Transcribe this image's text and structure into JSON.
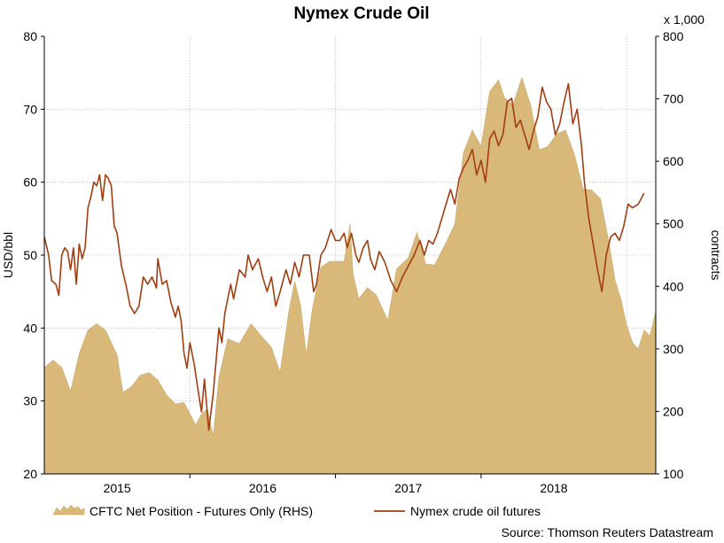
{
  "chart_data": {
    "type": "line",
    "title": "Nymex Crude Oil",
    "ylabel": "USD/bbl",
    "y2label": "contracts",
    "y2_multiplier_label": "x 1,000",
    "ylim": [
      20,
      80
    ],
    "y2lim": [
      100,
      800
    ],
    "yticks": [
      "20",
      "30",
      "40",
      "50",
      "60",
      "70",
      "80"
    ],
    "y2ticks": [
      "100",
      "200",
      "300",
      "400",
      "500",
      "600",
      "700",
      "800"
    ],
    "xlim": [
      2014.5,
      2018.7
    ],
    "xticks": [
      {
        "label": "2015",
        "x": 2015.0
      },
      {
        "label": "2016",
        "x": 2016.0
      },
      {
        "label": "2017",
        "x": 2017.0
      },
      {
        "label": "2018",
        "x": 2018.0
      }
    ],
    "grid": true,
    "legend_position": "bottom",
    "source": "Source: Thomson Reuters Datastream",
    "colors": {
      "area_fill": "#d9b97a",
      "area_stroke": "#c9a35d",
      "line": "#a33d10",
      "grid": "#bbbbbb"
    },
    "series": [
      {
        "name": "CFTC Net Position - Futures Only (RHS)",
        "type": "area",
        "axis": "right",
        "points": [
          [
            2014.5,
            270
          ],
          [
            2014.56,
            282
          ],
          [
            2014.62,
            270
          ],
          [
            2014.68,
            232
          ],
          [
            2014.74,
            292
          ],
          [
            2014.8,
            330
          ],
          [
            2014.86,
            340
          ],
          [
            2014.92,
            330
          ],
          [
            2015.0,
            290
          ],
          [
            2015.04,
            230
          ],
          [
            2015.1,
            240
          ],
          [
            2015.16,
            258
          ],
          [
            2015.22,
            262
          ],
          [
            2015.28,
            250
          ],
          [
            2015.34,
            226
          ],
          [
            2015.4,
            212
          ],
          [
            2015.46,
            214
          ],
          [
            2015.5,
            196
          ],
          [
            2015.54,
            178
          ],
          [
            2015.58,
            196
          ],
          [
            2015.62,
            204
          ],
          [
            2015.66,
            160
          ],
          [
            2015.7,
            255
          ],
          [
            2015.76,
            316
          ],
          [
            2015.84,
            308
          ],
          [
            2015.92,
            340
          ],
          [
            2016.0,
            318
          ],
          [
            2016.06,
            302
          ],
          [
            2016.12,
            262
          ],
          [
            2016.18,
            360
          ],
          [
            2016.22,
            408
          ],
          [
            2016.26,
            370
          ],
          [
            2016.3,
            290
          ],
          [
            2016.34,
            362
          ],
          [
            2016.4,
            430
          ],
          [
            2016.46,
            440
          ],
          [
            2016.52,
            440
          ],
          [
            2016.56,
            440
          ],
          [
            2016.6,
            500
          ],
          [
            2016.62,
            420
          ],
          [
            2016.66,
            380
          ],
          [
            2016.72,
            398
          ],
          [
            2016.78,
            386
          ],
          [
            2016.86,
            345
          ],
          [
            2016.92,
            428
          ],
          [
            2017.0,
            445
          ],
          [
            2017.06,
            486
          ],
          [
            2017.12,
            436
          ],
          [
            2017.18,
            434
          ],
          [
            2017.22,
            452
          ],
          [
            2017.26,
            470
          ],
          [
            2017.32,
            500
          ],
          [
            2017.38,
            614
          ],
          [
            2017.44,
            650
          ],
          [
            2017.5,
            624
          ],
          [
            2017.56,
            712
          ],
          [
            2017.62,
            730
          ],
          [
            2017.66,
            702
          ],
          [
            2017.72,
            690
          ],
          [
            2017.78,
            734
          ],
          [
            2017.84,
            690
          ],
          [
            2017.9,
            618
          ],
          [
            2017.96,
            624
          ],
          [
            2018.02,
            644
          ],
          [
            2018.08,
            650
          ],
          [
            2018.14,
            612
          ],
          [
            2018.2,
            556
          ],
          [
            2018.26,
            554
          ],
          [
            2018.32,
            540
          ],
          [
            2018.38,
            468
          ],
          [
            2018.42,
            410
          ],
          [
            2018.46,
            380
          ],
          [
            2018.5,
            338
          ],
          [
            2018.54,
            310
          ],
          [
            2018.58,
            300
          ],
          [
            2018.62,
            330
          ],
          [
            2018.66,
            320
          ],
          [
            2018.7,
            360
          ]
        ]
      },
      {
        "name": "Nymex crude oil futures",
        "type": "line",
        "axis": "left",
        "points": [
          [
            2014.5,
            52.5
          ],
          [
            2014.53,
            50.0
          ],
          [
            2014.55,
            46.5
          ],
          [
            2014.58,
            46.0
          ],
          [
            2014.6,
            44.5
          ],
          [
            2014.62,
            50.0
          ],
          [
            2014.64,
            51.0
          ],
          [
            2014.66,
            50.5
          ],
          [
            2014.68,
            48.0
          ],
          [
            2014.7,
            51.0
          ],
          [
            2014.72,
            46.0
          ],
          [
            2014.74,
            51.5
          ],
          [
            2014.76,
            49.5
          ],
          [
            2014.78,
            51.0
          ],
          [
            2014.8,
            56.5
          ],
          [
            2014.82,
            58.0
          ],
          [
            2014.84,
            60.0
          ],
          [
            2014.86,
            59.5
          ],
          [
            2014.88,
            61.0
          ],
          [
            2014.9,
            57.5
          ],
          [
            2014.92,
            61.0
          ],
          [
            2014.94,
            60.5
          ],
          [
            2014.96,
            59.5
          ],
          [
            2014.98,
            54.0
          ],
          [
            2015.0,
            53.0
          ],
          [
            2015.03,
            48.5
          ],
          [
            2015.06,
            46.0
          ],
          [
            2015.09,
            43.0
          ],
          [
            2015.12,
            42.0
          ],
          [
            2015.15,
            43.0
          ],
          [
            2015.18,
            47.0
          ],
          [
            2015.21,
            46.0
          ],
          [
            2015.24,
            47.0
          ],
          [
            2015.27,
            45.5
          ],
          [
            2015.28,
            49.5
          ],
          [
            2015.31,
            46.0
          ],
          [
            2015.34,
            46.5
          ],
          [
            2015.37,
            43.5
          ],
          [
            2015.4,
            41.5
          ],
          [
            2015.42,
            43.0
          ],
          [
            2015.44,
            41.0
          ],
          [
            2015.46,
            36.5
          ],
          [
            2015.48,
            34.5
          ],
          [
            2015.5,
            38.0
          ],
          [
            2015.53,
            35.0
          ],
          [
            2015.56,
            31.0
          ],
          [
            2015.58,
            28.5
          ],
          [
            2015.6,
            33.0
          ],
          [
            2015.63,
            26.0
          ],
          [
            2015.66,
            31.0
          ],
          [
            2015.7,
            40.0
          ],
          [
            2015.72,
            38.0
          ],
          [
            2015.74,
            42.0
          ],
          [
            2015.78,
            46.0
          ],
          [
            2015.8,
            44.0
          ],
          [
            2015.84,
            48.0
          ],
          [
            2015.88,
            47.0
          ],
          [
            2015.9,
            50.0
          ],
          [
            2015.93,
            48.0
          ],
          [
            2015.97,
            49.5
          ],
          [
            2016.0,
            47.0
          ],
          [
            2016.03,
            45.0
          ],
          [
            2016.06,
            47.0
          ],
          [
            2016.09,
            43.0
          ],
          [
            2016.12,
            45.0
          ],
          [
            2016.16,
            48.0
          ],
          [
            2016.19,
            46.0
          ],
          [
            2016.22,
            49.0
          ],
          [
            2016.25,
            47.0
          ],
          [
            2016.28,
            50.0
          ],
          [
            2016.32,
            50.0
          ],
          [
            2016.35,
            45.0
          ],
          [
            2016.37,
            46.0
          ],
          [
            2016.4,
            50.0
          ],
          [
            2016.43,
            51.0
          ],
          [
            2016.47,
            53.5
          ],
          [
            2016.5,
            52.0
          ],
          [
            2016.53,
            52.0
          ],
          [
            2016.56,
            53.0
          ],
          [
            2016.58,
            51.0
          ],
          [
            2016.61,
            53.0
          ],
          [
            2016.64,
            50.0
          ],
          [
            2016.66,
            49.0
          ],
          [
            2016.69,
            51.0
          ],
          [
            2016.72,
            52.0
          ],
          [
            2016.74,
            49.5
          ],
          [
            2016.77,
            48.0
          ],
          [
            2016.8,
            50.5
          ],
          [
            2016.84,
            49.0
          ],
          [
            2016.88,
            46.5
          ],
          [
            2016.92,
            45.0
          ],
          [
            2016.96,
            47.0
          ],
          [
            2017.0,
            48.5
          ],
          [
            2017.04,
            50.0
          ],
          [
            2017.08,
            52.0
          ],
          [
            2017.11,
            50.0
          ],
          [
            2017.14,
            52.0
          ],
          [
            2017.17,
            51.5
          ],
          [
            2017.2,
            53.0
          ],
          [
            2017.23,
            55.0
          ],
          [
            2017.26,
            57.0
          ],
          [
            2017.29,
            59.0
          ],
          [
            2017.32,
            57.0
          ],
          [
            2017.35,
            60.5
          ],
          [
            2017.38,
            62.0
          ],
          [
            2017.41,
            63.0
          ],
          [
            2017.44,
            64.5
          ],
          [
            2017.47,
            61.0
          ],
          [
            2017.5,
            63.0
          ],
          [
            2017.53,
            60.0
          ],
          [
            2017.56,
            66.0
          ],
          [
            2017.59,
            67.0
          ],
          [
            2017.62,
            65.0
          ],
          [
            2017.65,
            66.5
          ],
          [
            2017.68,
            71.0
          ],
          [
            2017.71,
            71.5
          ],
          [
            2017.74,
            67.5
          ],
          [
            2017.77,
            68.5
          ],
          [
            2017.8,
            66.5
          ],
          [
            2017.83,
            64.5
          ],
          [
            2017.86,
            67.0
          ],
          [
            2017.89,
            69.0
          ],
          [
            2017.92,
            73.0
          ],
          [
            2017.95,
            71.0
          ],
          [
            2017.98,
            70.0
          ],
          [
            2018.01,
            66.5
          ],
          [
            2018.04,
            68.0
          ],
          [
            2018.07,
            71.0
          ],
          [
            2018.1,
            73.5
          ],
          [
            2018.13,
            68.0
          ],
          [
            2018.16,
            70.0
          ],
          [
            2018.19,
            65.0
          ],
          [
            2018.21,
            60.0
          ],
          [
            2018.24,
            55.0
          ],
          [
            2018.27,
            51.5
          ],
          [
            2018.3,
            48.0
          ],
          [
            2018.33,
            45.0
          ],
          [
            2018.36,
            50.0
          ],
          [
            2018.39,
            52.5
          ],
          [
            2018.42,
            53.0
          ],
          [
            2018.45,
            52.0
          ],
          [
            2018.48,
            54.0
          ],
          [
            2018.51,
            57.0
          ],
          [
            2018.54,
            56.5
          ],
          [
            2018.58,
            57.0
          ],
          [
            2018.62,
            58.5
          ]
        ]
      }
    ]
  }
}
